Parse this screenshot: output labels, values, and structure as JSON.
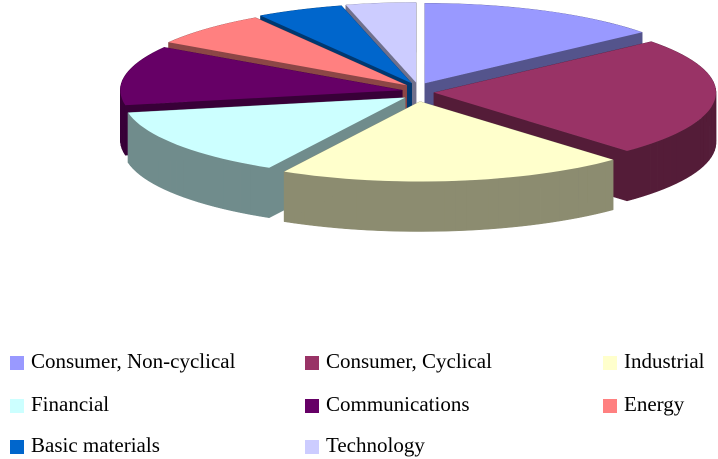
{
  "chart_data": {
    "type": "pie3d",
    "categories": [
      "Consumer, Non-cyclical",
      "Consumer, Cyclical",
      "Industrial",
      "Financial",
      "Communications",
      "Energy",
      "Basic materials",
      "Technology"
    ],
    "values": [
      14,
      24,
      20,
      14,
      12,
      7,
      5,
      4
    ],
    "colors": [
      "#9999ff",
      "#993366",
      "#ffffcc",
      "#ccffff",
      "#660066",
      "#ff8080",
      "#0066cc",
      "#ccccff"
    ],
    "legend": "bottom"
  }
}
